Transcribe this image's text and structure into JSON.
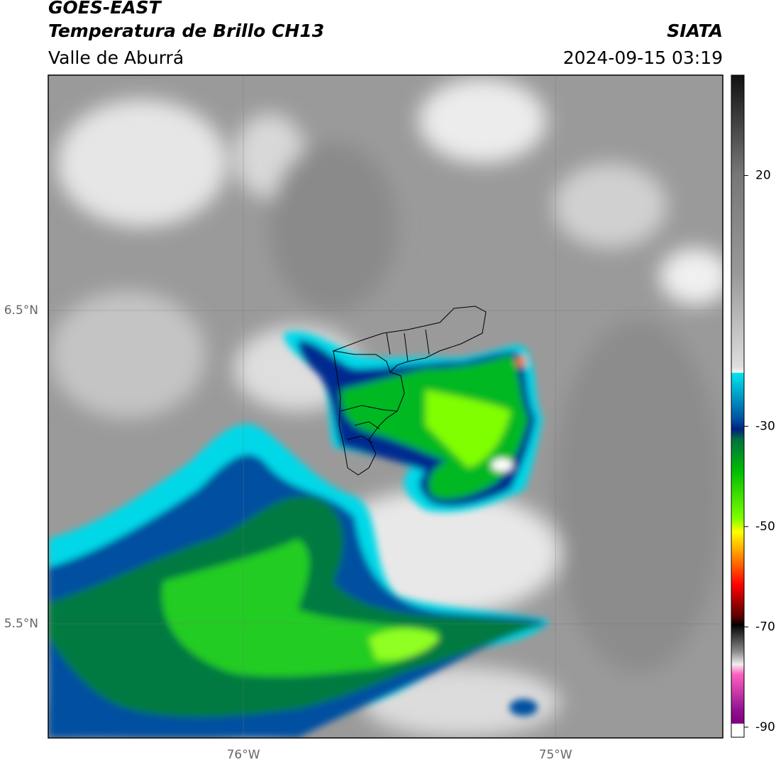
{
  "header": {
    "satellite": "GOES-EAST",
    "product": "Temperatura de Brillo CH13",
    "region": "Valle de Aburrá",
    "agency": "SIATA",
    "datetime": "2024-09-15 03:19"
  },
  "map": {
    "xlim": [
      -76.625,
      -74.464
    ],
    "ylim": [
      5.136,
      7.251
    ],
    "xticks": [
      {
        "value": -76,
        "label": "76°W"
      },
      {
        "value": -75,
        "label": "75°W"
      }
    ],
    "yticks": [
      {
        "value": 6.5,
        "label": "6.5°N"
      },
      {
        "value": 5.5,
        "label": "5.5°N"
      }
    ]
  },
  "colorbar": {
    "lim": [
      -92,
      40
    ],
    "ticks": [
      20,
      -30,
      -50,
      -70,
      -90
    ]
  }
}
